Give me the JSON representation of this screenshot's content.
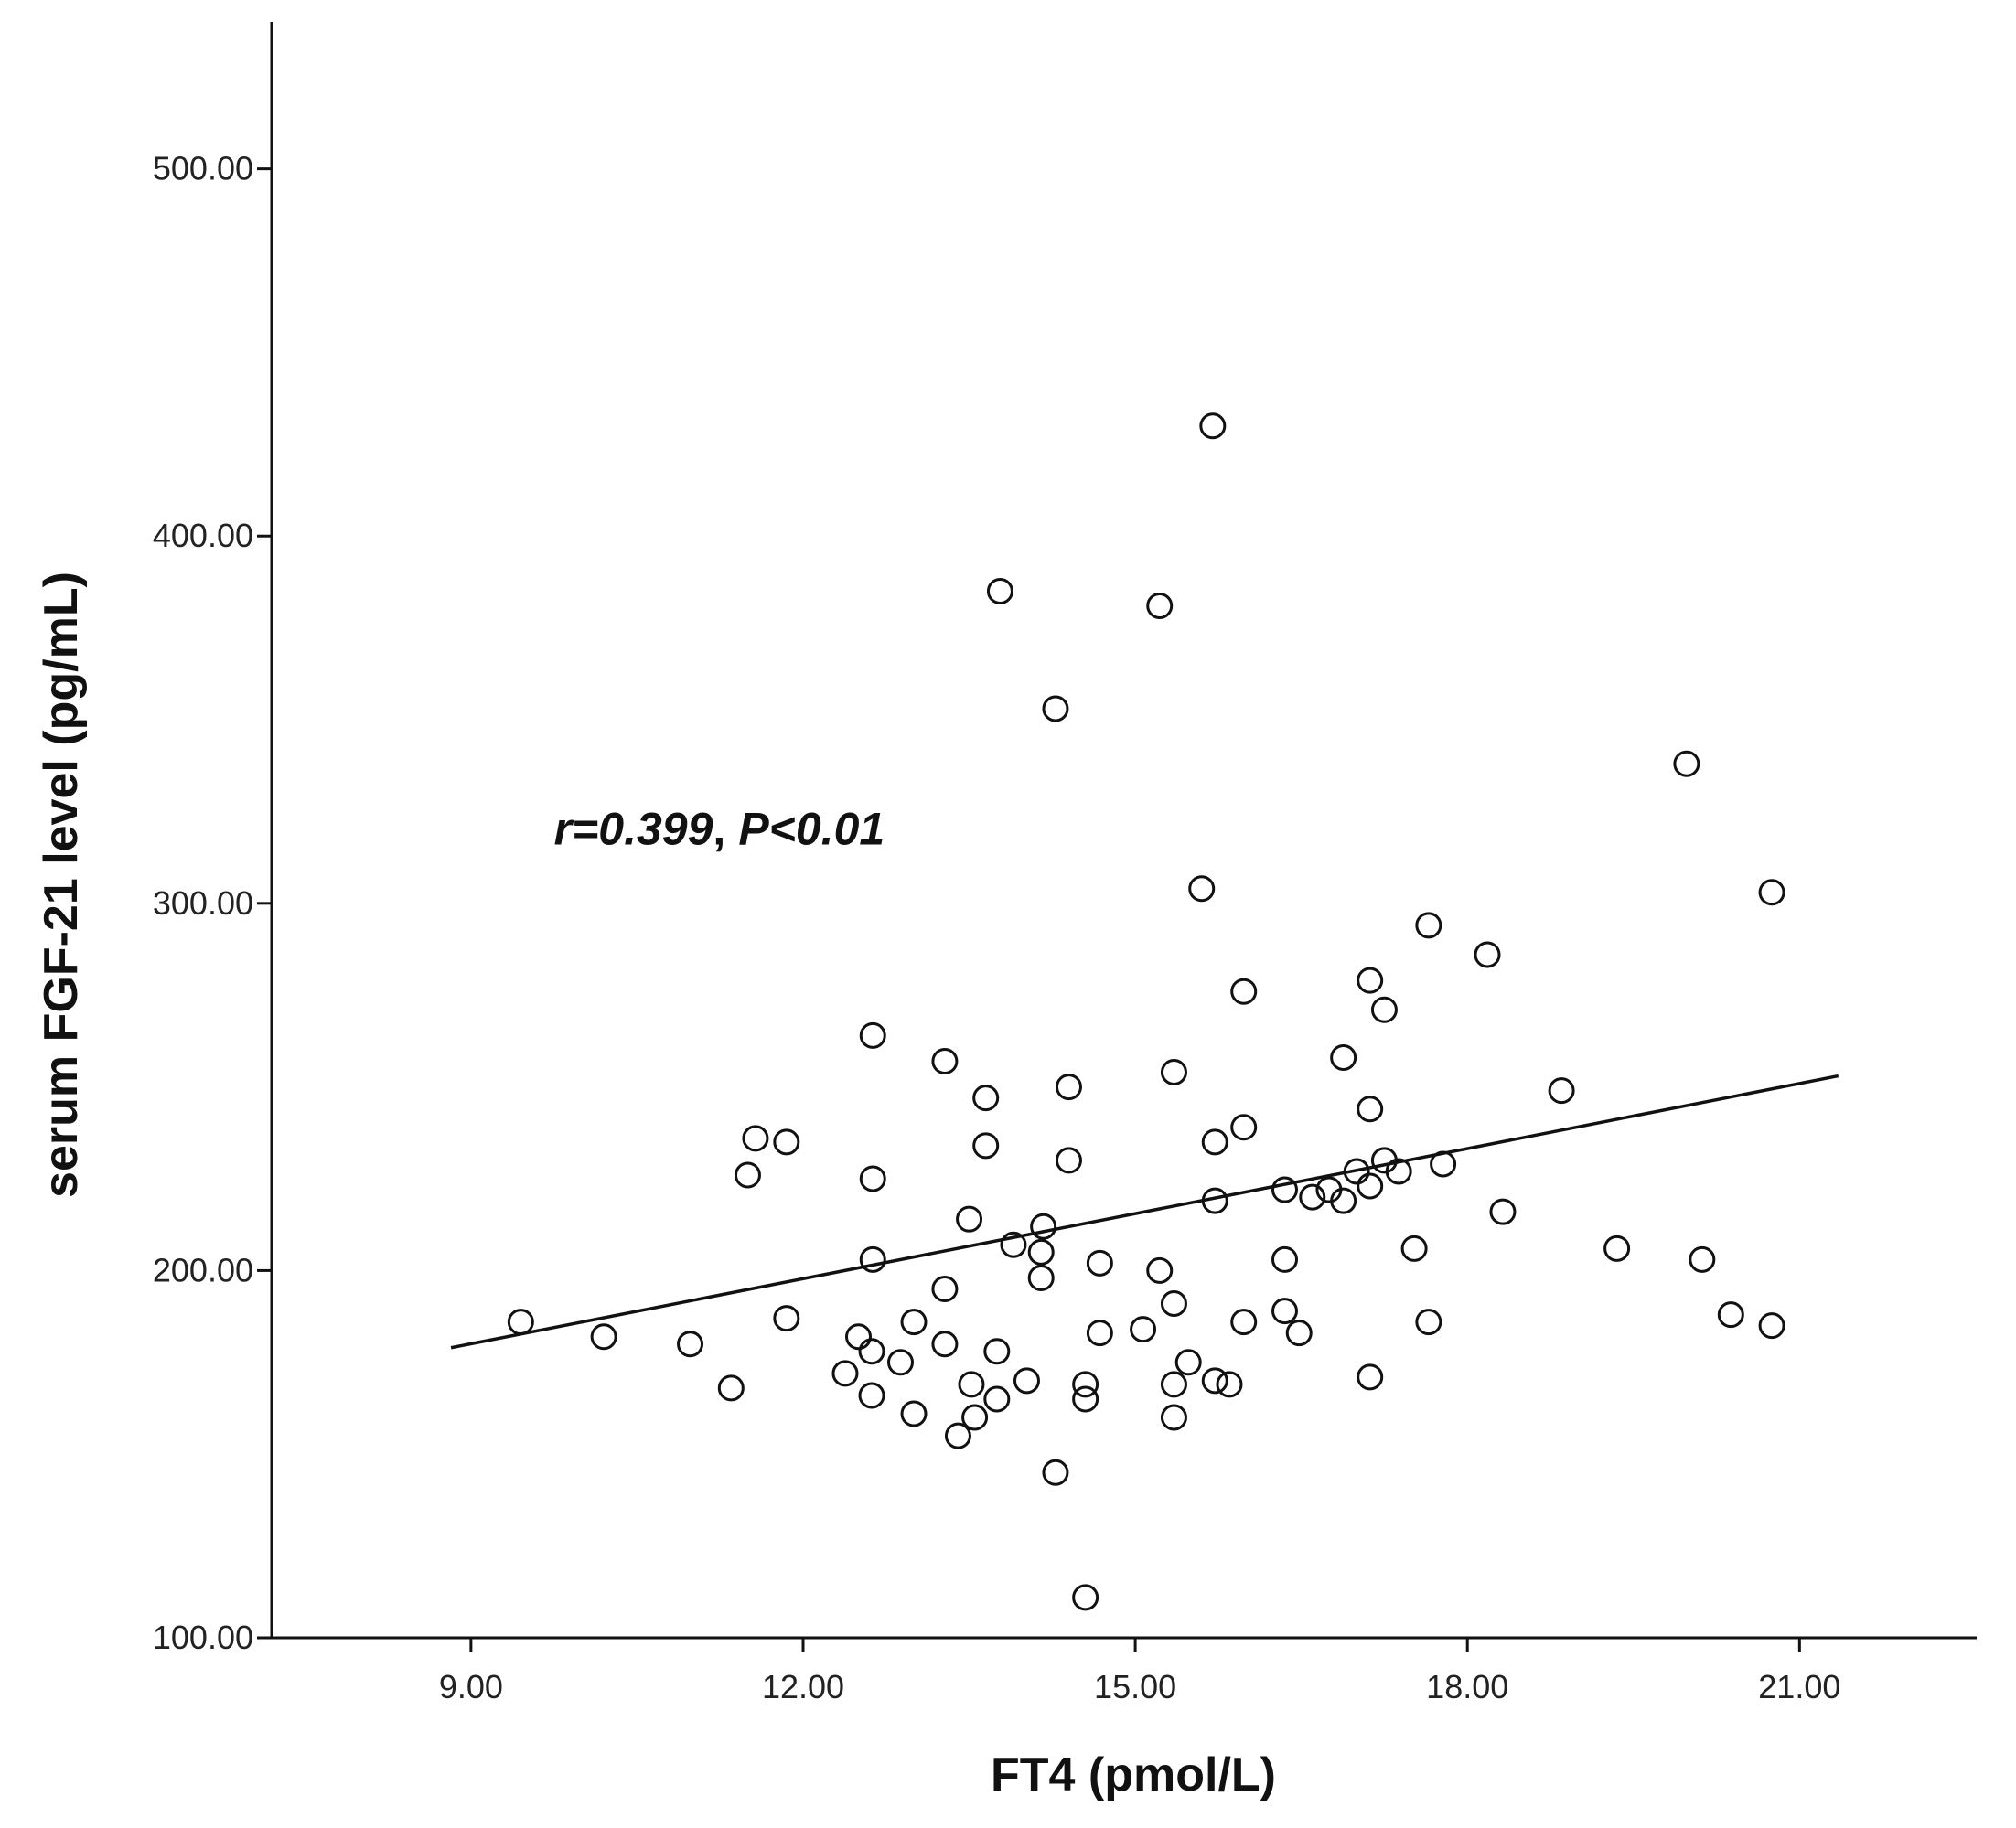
{
  "chart_data": {
    "type": "scatter",
    "title": "",
    "xlabel": "FT4 (pmol/L)",
    "ylabel": "serum FGF-21 level (pg/mL)",
    "xlim": [
      7.2,
      22.6
    ],
    "ylim": [
      100,
      540
    ],
    "xticks": [
      9,
      12,
      15,
      18,
      21
    ],
    "xtick_labels": [
      "9.00",
      "12.00",
      "15.00",
      "18.00",
      "21.00"
    ],
    "yticks": [
      100,
      200,
      300,
      400,
      500
    ],
    "ytick_labels": [
      "100.00",
      "200.00",
      "300.00",
      "400.00",
      "500.00"
    ],
    "grid": false,
    "annotation": {
      "r_text": "r=0.399",
      "separator": ",",
      "p_text": "P<0.01",
      "x": 9.75,
      "y": 316
    },
    "fit_line": {
      "x": [
        8.82,
        21.35
      ],
      "y": [
        179,
        253
      ]
    },
    "series": [
      {
        "name": "subjects",
        "marker": "open-circle",
        "points": [
          [
            9.45,
            186
          ],
          [
            10.2,
            182
          ],
          [
            10.98,
            180
          ],
          [
            11.35,
            168
          ],
          [
            11.5,
            226
          ],
          [
            11.57,
            236
          ],
          [
            11.85,
            235
          ],
          [
            11.85,
            187
          ],
          [
            12.38,
            172
          ],
          [
            12.5,
            182
          ],
          [
            12.62,
            178
          ],
          [
            12.62,
            166
          ],
          [
            12.63,
            264
          ],
          [
            12.63,
            225
          ],
          [
            12.63,
            203
          ],
          [
            12.88,
            175
          ],
          [
            13.0,
            186
          ],
          [
            13.0,
            161
          ],
          [
            13.28,
            195
          ],
          [
            13.28,
            180
          ],
          [
            13.28,
            257
          ],
          [
            13.4,
            155
          ],
          [
            13.5,
            214
          ],
          [
            13.52,
            169
          ],
          [
            13.55,
            160
          ],
          [
            13.65,
            247
          ],
          [
            13.65,
            234
          ],
          [
            13.75,
            178
          ],
          [
            13.75,
            165
          ],
          [
            13.78,
            385
          ],
          [
            13.9,
            207
          ],
          [
            14.02,
            170
          ],
          [
            14.15,
            198
          ],
          [
            14.15,
            205
          ],
          [
            14.17,
            212
          ],
          [
            14.28,
            145
          ],
          [
            14.28,
            353
          ],
          [
            14.4,
            250
          ],
          [
            14.4,
            230
          ],
          [
            14.55,
            165
          ],
          [
            14.55,
            169
          ],
          [
            14.55,
            111
          ],
          [
            14.68,
            202
          ],
          [
            14.68,
            183
          ],
          [
            15.07,
            184
          ],
          [
            15.22,
            200
          ],
          [
            15.22,
            381
          ],
          [
            15.35,
            254
          ],
          [
            15.35,
            191
          ],
          [
            15.35,
            169
          ],
          [
            15.35,
            160
          ],
          [
            15.48,
            175
          ],
          [
            15.6,
            304
          ],
          [
            15.7,
            430
          ],
          [
            15.72,
            235
          ],
          [
            15.72,
            219
          ],
          [
            15.72,
            170
          ],
          [
            15.85,
            169
          ],
          [
            15.98,
            276
          ],
          [
            15.98,
            239
          ],
          [
            15.98,
            186
          ],
          [
            16.35,
            222
          ],
          [
            16.35,
            203
          ],
          [
            16.35,
            189
          ],
          [
            16.48,
            183
          ],
          [
            16.6,
            220
          ],
          [
            16.75,
            222
          ],
          [
            16.88,
            258
          ],
          [
            16.88,
            219
          ],
          [
            17.0,
            227
          ],
          [
            17.12,
            279
          ],
          [
            17.12,
            244
          ],
          [
            17.12,
            223
          ],
          [
            17.12,
            171
          ],
          [
            17.25,
            271
          ],
          [
            17.25,
            230
          ],
          [
            17.38,
            227
          ],
          [
            17.52,
            206
          ],
          [
            17.65,
            294
          ],
          [
            17.65,
            186
          ],
          [
            17.78,
            229
          ],
          [
            18.18,
            286
          ],
          [
            18.32,
            216
          ],
          [
            18.85,
            249
          ],
          [
            19.35,
            206
          ],
          [
            19.98,
            338
          ],
          [
            20.12,
            203
          ],
          [
            20.38,
            188
          ],
          [
            20.75,
            303
          ],
          [
            20.75,
            185
          ]
        ]
      }
    ]
  }
}
